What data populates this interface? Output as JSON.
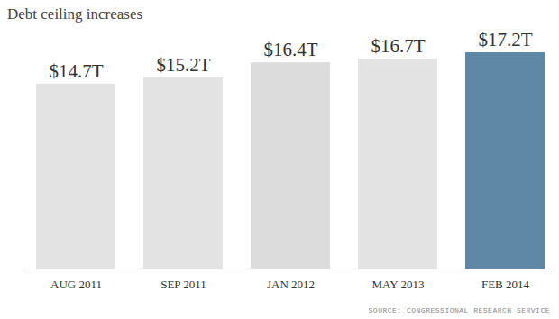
{
  "chart_data": {
    "type": "bar",
    "title": "Debt ceiling increases",
    "source": "SOURCE: CONGRESSIONAL RESEARCH SERVICE",
    "categories": [
      "AUG 2011",
      "SEP 2011",
      "JAN 2012",
      "MAY 2013",
      "FEB 2014"
    ],
    "values": [
      14.7,
      15.2,
      16.4,
      16.7,
      17.2
    ],
    "value_labels": [
      "$14.7T",
      "$15.2T",
      "$16.4T",
      "$16.7T",
      "$17.2T"
    ],
    "colors": [
      "#e3e3e3",
      "#e3e3e3",
      "#dcdcdc",
      "#e3e3e3",
      "#5f87a6"
    ],
    "ylim": [
      0,
      17.2
    ],
    "yticks": [],
    "grid": false,
    "data_labels": true,
    "tick_labels": "x"
  }
}
